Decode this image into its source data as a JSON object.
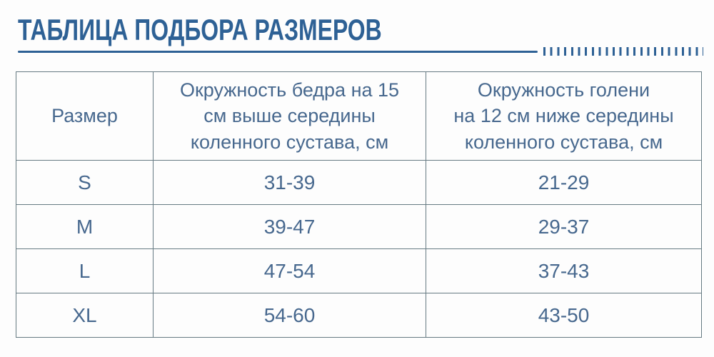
{
  "title": "ТАБЛИЦА ПОДБОРА РАЗМЕРОВ",
  "colors": {
    "accent_blue": "#2e6195",
    "table_border": "#667a82",
    "table_text": "#47688e"
  },
  "table": {
    "headers": [
      "Размер",
      "Окружность бедра на 15\nсм выше середины\nколенного сустава, см",
      "Окружность голени\nна 12 см ниже середины\nколенного сустава, см"
    ],
    "rows": [
      [
        "S",
        "31-39",
        "21-29"
      ],
      [
        "M",
        "39-47",
        "29-37"
      ],
      [
        "L",
        "47-54",
        "37-43"
      ],
      [
        "XL",
        "54-60",
        "43-50"
      ]
    ]
  }
}
